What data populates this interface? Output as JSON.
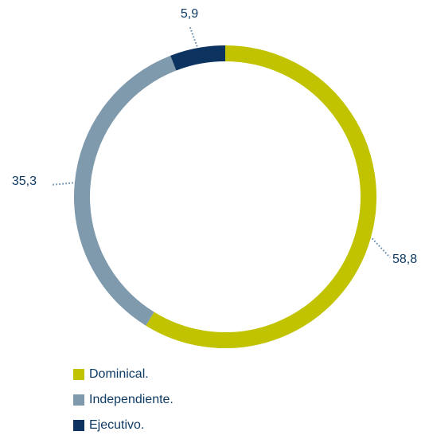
{
  "chart_data": {
    "type": "pie",
    "variant": "donut",
    "slices": [
      {
        "label": "Dominical.",
        "value": 58.8,
        "value_label": "58,8",
        "color": "#c1c300"
      },
      {
        "label": "Independiente.",
        "value": 35.3,
        "value_label": "35,3",
        "color": "#7f9aad"
      },
      {
        "label": "Ejecutivo.",
        "value": 5.9,
        "value_label": "5,9",
        "color": "#0d3461"
      }
    ],
    "start": "top",
    "direction": "clockwise",
    "legend_position": "bottom-left",
    "label_color": "#0e3a63",
    "leader_style": "dotted"
  }
}
